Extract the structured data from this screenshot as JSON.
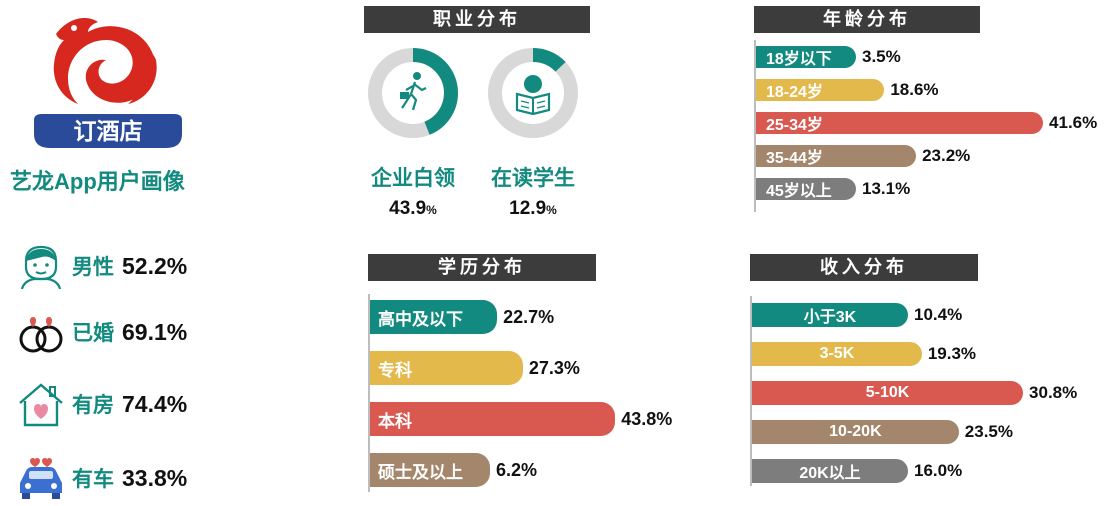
{
  "profile": {
    "badge_text": "订酒店",
    "title": "艺龙App用户画像",
    "stats": [
      {
        "icon": "male-face-icon",
        "label": "男性",
        "value": "52.2%"
      },
      {
        "icon": "wedding-rings-icon",
        "label": "已婚",
        "value": "69.1%"
      },
      {
        "icon": "house-heart-icon",
        "label": "有房",
        "value": "74.4%"
      },
      {
        "icon": "car-icon",
        "label": "有车",
        "value": "33.8%"
      }
    ]
  },
  "colors": {
    "teal": "#138a7f",
    "yellow": "#e3b94c",
    "red": "#d9584f",
    "brown": "#a3866b",
    "gray": "#7d7d7d",
    "header_bg": "#3c3c3c",
    "donut_track": "#d8d8d8",
    "logo_red": "#d7281f",
    "logo_blue": "#2a4a9a"
  },
  "chart_data": [
    {
      "type": "pie",
      "title": "职业分布",
      "items": [
        {
          "label": "企业白领",
          "value": 43.9,
          "value_text": "43.9",
          "unit": "%",
          "icon": "walking-commuter-icon"
        },
        {
          "label": "在读学生",
          "value": 12.9,
          "value_text": "12.9",
          "unit": "%",
          "icon": "reading-student-icon"
        }
      ]
    },
    {
      "type": "bar",
      "title": "年龄分布",
      "categories": [
        "18岁以下",
        "18-24岁",
        "25-34岁",
        "35-44岁",
        "45岁以上"
      ],
      "values": [
        3.5,
        18.6,
        41.6,
        23.2,
        13.1
      ],
      "value_labels": [
        "3.5%",
        "18.6%",
        "41.6%",
        "23.2%",
        "13.1%"
      ],
      "colors": [
        "#138a7f",
        "#e3b94c",
        "#d9584f",
        "#a3866b",
        "#7d7d7d"
      ]
    },
    {
      "type": "bar",
      "title": "学历分布",
      "categories": [
        "高中及以下",
        "专科",
        "本科",
        "硕士及以上"
      ],
      "values": [
        22.7,
        27.3,
        43.8,
        6.2
      ],
      "value_labels": [
        "22.7%",
        "27.3%",
        "43.8%",
        "6.2%"
      ],
      "colors": [
        "#138a7f",
        "#e3b94c",
        "#d9584f",
        "#a3866b"
      ]
    },
    {
      "type": "bar",
      "title": "收入分布",
      "categories": [
        "小于3K",
        "3-5K",
        "5-10K",
        "10-20K",
        "20K以上"
      ],
      "values": [
        10.4,
        19.3,
        30.8,
        23.5,
        16.0
      ],
      "value_labels": [
        "10.4%",
        "19.3%",
        "30.8%",
        "23.5%",
        "16.0%"
      ],
      "colors": [
        "#138a7f",
        "#e3b94c",
        "#d9584f",
        "#a3866b",
        "#7d7d7d"
      ]
    }
  ]
}
